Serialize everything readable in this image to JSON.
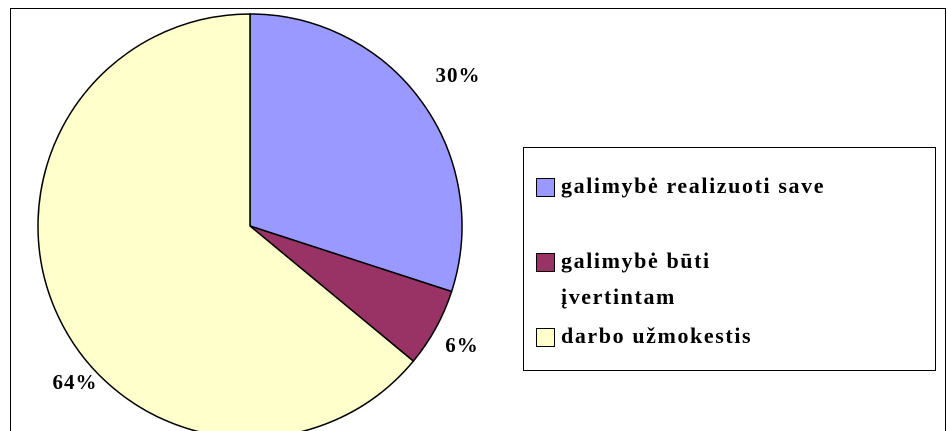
{
  "chart_data": {
    "type": "pie",
    "categories": [
      "galimybė realizuoti save",
      "galimybė būti įvertintam",
      "darbo užmokestis"
    ],
    "values": [
      30,
      6,
      64
    ],
    "value_labels": [
      "30%",
      "6%",
      "64%"
    ],
    "colors": [
      "#9999ff",
      "#993366",
      "#ffffcc"
    ],
    "legend": "right"
  }
}
